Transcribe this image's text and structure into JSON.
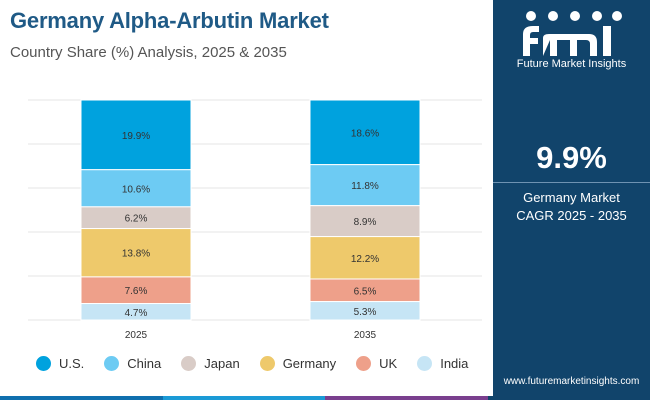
{
  "header": {
    "title": "Germany Alpha-Arbutin Market",
    "subtitle": "Country Share (%) Analysis, 2025 & 2035"
  },
  "side_panel": {
    "brand": "Future Market Insights",
    "cagr_value": "9.9%",
    "cagr_label_line1": "Germany Market",
    "cagr_label_line2": "CAGR 2025 - 2035",
    "website": "www.futuremarketinsights.com"
  },
  "colors": {
    "U.S.": "#00a2de",
    "China": "#6dcbf3",
    "Japan": "#d9ccc7",
    "Germany": "#eec96b",
    "UK": "#eea08a",
    "India": "#c6e5f5",
    "panel": "#11446b",
    "title": "#1f5a86"
  },
  "chart_data": {
    "type": "bar",
    "stacked": true,
    "categories": [
      "2025",
      "2035"
    ],
    "series": [
      {
        "name": "U.S.",
        "values": [
          19.9,
          18.6
        ],
        "labels": [
          "19.9%",
          "18.6%"
        ]
      },
      {
        "name": "China",
        "values": [
          10.6,
          11.8
        ],
        "labels": [
          "10.6%",
          "11.8%"
        ]
      },
      {
        "name": "Japan",
        "values": [
          6.2,
          8.9
        ],
        "labels": [
          "6.2%",
          "8.9%"
        ]
      },
      {
        "name": "Germany",
        "values": [
          13.8,
          12.2
        ],
        "labels": [
          "13.8%",
          "12.2%"
        ]
      },
      {
        "name": "UK",
        "values": [
          7.6,
          6.5
        ],
        "labels": [
          "7.6%",
          "6.5%"
        ]
      },
      {
        "name": "India",
        "values": [
          4.7,
          5.3
        ],
        "labels": [
          "4.7%",
          "5.3%"
        ]
      }
    ],
    "grid": true,
    "legend_position": "bottom"
  }
}
